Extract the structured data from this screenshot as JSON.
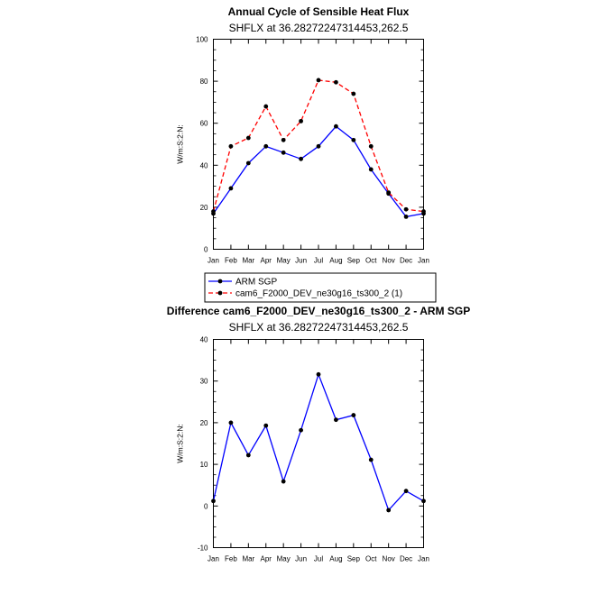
{
  "chart_data": [
    {
      "type": "line",
      "title": "Annual Cycle of Sensible Heat Flux",
      "subtitle": "SHFLX at 36.28272247314453,262.5",
      "xlabel": "",
      "ylabel": "W/m:S:2:N:",
      "categories": [
        "Jan",
        "Feb",
        "Mar",
        "Apr",
        "May",
        "Jun",
        "Jul",
        "Aug",
        "Sep",
        "Oct",
        "Nov",
        "Dec",
        "Jan"
      ],
      "ylim": [
        0,
        100
      ],
      "yticks": [
        0,
        20,
        40,
        60,
        80,
        100
      ],
      "series": [
        {
          "name": "ARM SGP",
          "color": "#0000ff",
          "dash": "solid",
          "values": [
            17,
            29,
            41,
            49,
            46,
            43,
            49,
            58.5,
            52,
            38,
            26.5,
            15.5,
            17
          ]
        },
        {
          "name": "cam6_F2000_DEV_ne30g16_ts300_2 (1)",
          "color": "#ff0000",
          "dash": "dashed",
          "values": [
            18,
            49,
            53,
            68,
            52,
            61,
            80.5,
            79.5,
            74,
            49,
            27,
            19,
            18
          ]
        }
      ],
      "legend": "bottom-left"
    },
    {
      "type": "line",
      "title": "Difference cam6_F2000_DEV_ne30g16_ts300_2 - ARM SGP",
      "subtitle": "SHFLX at 36.28272247314453,262.5",
      "xlabel": "",
      "ylabel": "W/m:S:2:N:",
      "categories": [
        "Jan",
        "Feb",
        "Mar",
        "Apr",
        "May",
        "Jun",
        "Jul",
        "Aug",
        "Sep",
        "Oct",
        "Nov",
        "Dec",
        "Jan"
      ],
      "ylim": [
        -10,
        40
      ],
      "yticks": [
        -10,
        0,
        10,
        20,
        30,
        40
      ],
      "series": [
        {
          "name": "Difference",
          "color": "#0000ff",
          "dash": "solid",
          "values": [
            1.2,
            20,
            12.2,
            19.3,
            5.9,
            18.2,
            31.6,
            20.7,
            21.8,
            11.1,
            -1,
            3.6,
            1.2
          ]
        }
      ]
    }
  ]
}
